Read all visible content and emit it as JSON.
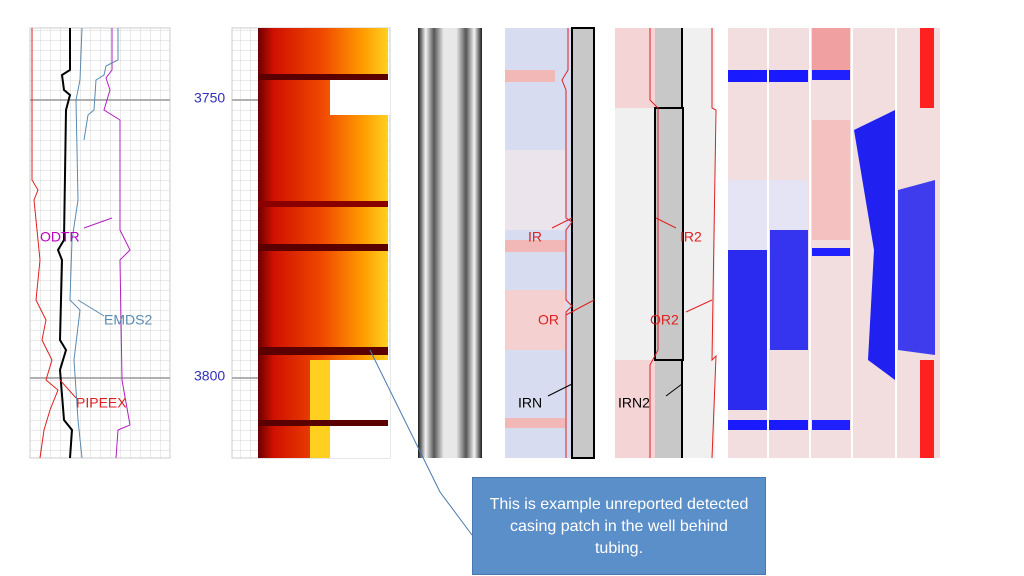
{
  "depth_labels": [
    "3750",
    "3800"
  ],
  "curve_labels": {
    "track1": [
      "ODTR",
      "EMDS2",
      "PIPEEX"
    ],
    "track4": [
      "IR",
      "OR",
      "IRN"
    ],
    "track5": [
      "IR2",
      "OR2",
      "IRN2"
    ]
  },
  "callout": {
    "text": "This is example  unreported detected casing patch in the well behind tubing."
  }
}
